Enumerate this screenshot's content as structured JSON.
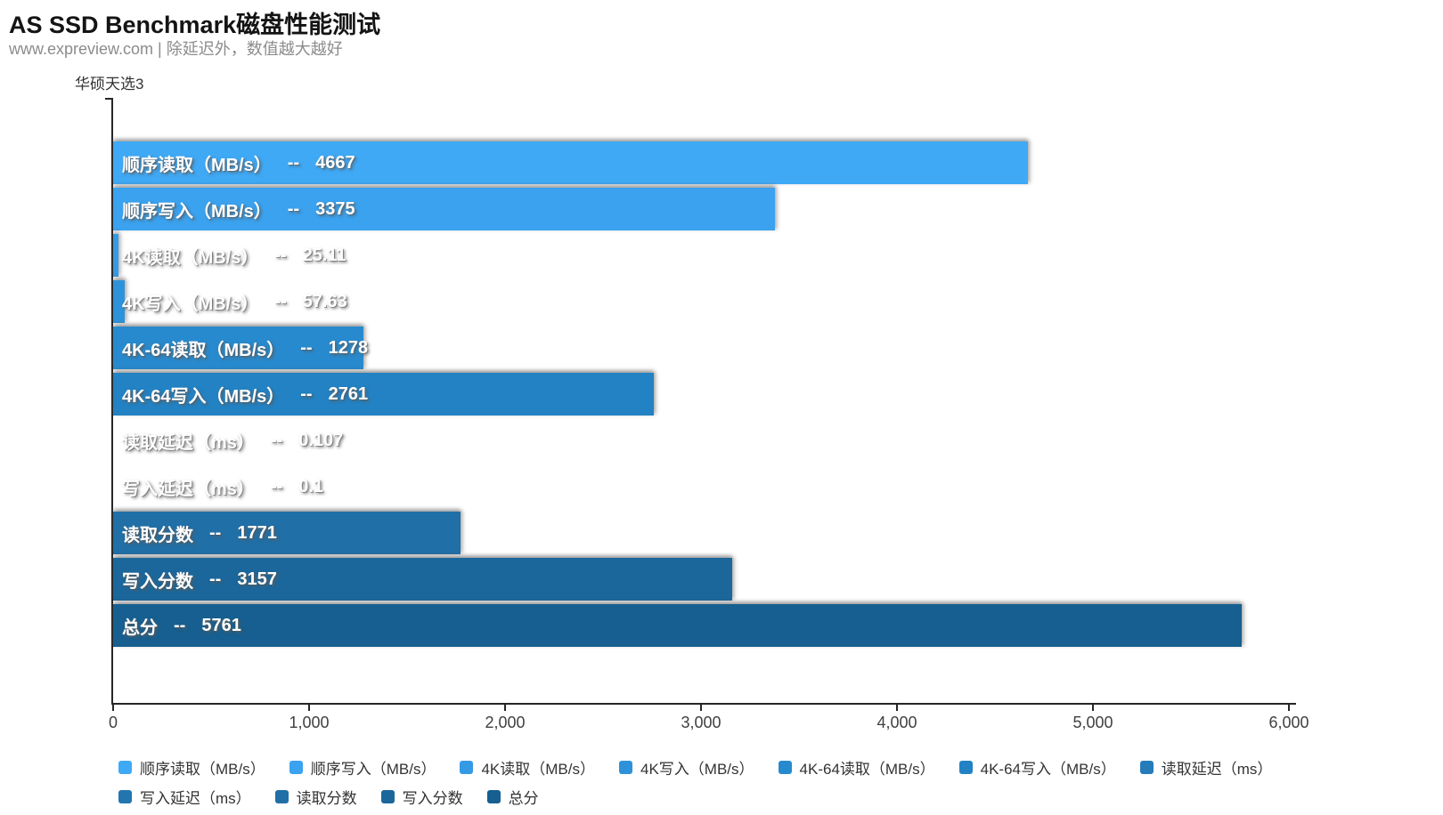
{
  "header": {
    "title": "AS SSD Benchmark磁盘性能测试",
    "subtitle": "www.expreview.com | 除延迟外，数值越大越好"
  },
  "chart_data": {
    "type": "bar",
    "orientation": "horizontal",
    "group_label": "华硕天选3",
    "note": "除延迟外，数值越大越好",
    "xlim": [
      0,
      6000
    ],
    "x_ticks": [
      "0",
      "1,000",
      "2,000",
      "3,000",
      "4,000",
      "5,000",
      "6,000"
    ],
    "grid": "off",
    "legend_position": "bottom",
    "separator": "--",
    "series": [
      {
        "name": "顺序读取（MB/s）",
        "value": 4667,
        "display": "4667",
        "color": "#3FA9F6"
      },
      {
        "name": "顺序写入（MB/s）",
        "value": 3375,
        "display": "3375",
        "color": "#3AA2EF"
      },
      {
        "name": "4K读取（MB/s）",
        "value": 25.11,
        "display": "25.11",
        "color": "#349AE5"
      },
      {
        "name": "4K写入（MB/s）",
        "value": 57.63,
        "display": "57.63",
        "color": "#2E92DA"
      },
      {
        "name": "4K-64读取（MB/s）",
        "value": 1278,
        "display": "1278",
        "color": "#288ACE"
      },
      {
        "name": "4K-64写入（MB/s）",
        "value": 2761,
        "display": "2761",
        "color": "#2282C3"
      },
      {
        "name": "读取延迟（ms）",
        "value": 0.107,
        "display": "0.107",
        "color": "#267CB9"
      },
      {
        "name": "写入延迟（ms）",
        "value": 0.1,
        "display": "0.1",
        "color": "#2375AF"
      },
      {
        "name": "读取分数",
        "value": 1771,
        "display": "1771",
        "color": "#206FA7"
      },
      {
        "name": "写入分数",
        "value": 3157,
        "display": "3157",
        "color": "#1B679B"
      },
      {
        "name": "总分",
        "value": 5761,
        "display": "5761",
        "color": "#165F90"
      }
    ],
    "legend_rows": [
      [
        0,
        1,
        2,
        3,
        4,
        5,
        6
      ],
      [
        7,
        8,
        9,
        10
      ]
    ]
  }
}
